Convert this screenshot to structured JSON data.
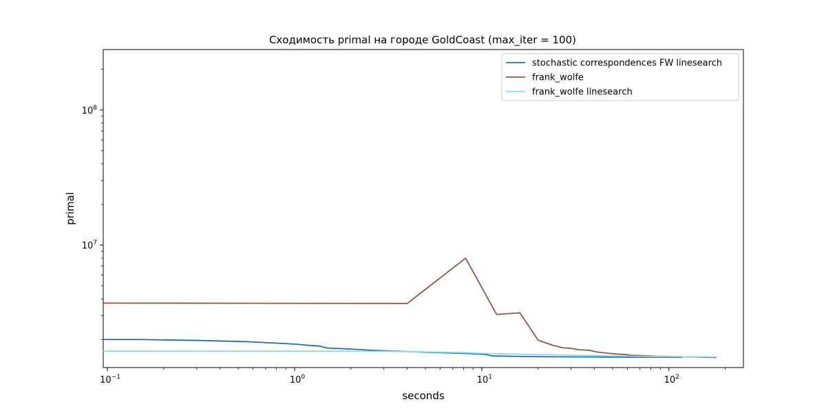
{
  "chart_data": {
    "type": "line",
    "title": "Сходимость primal на городе GoldCoast  (max_iter = 100)",
    "xlabel": "seconds",
    "ylabel": "primal",
    "xscale": "log",
    "yscale": "log",
    "xlim": [
      0.095,
      250
    ],
    "ylim": [
      1240000,
      280000000
    ],
    "grid": false,
    "legend_position": "top-right",
    "x_ticks": [
      {
        "value": 0.1,
        "base": "10",
        "exp": "−1"
      },
      {
        "value": 1,
        "base": "10",
        "exp": "0"
      },
      {
        "value": 10,
        "base": "10",
        "exp": "1"
      },
      {
        "value": 100,
        "base": "10",
        "exp": "2"
      }
    ],
    "y_ticks": [
      {
        "value": 10000000,
        "base": "10",
        "exp": "7"
      },
      {
        "value": 100000000,
        "base": "10",
        "exp": "8"
      }
    ],
    "series": [
      {
        "name": "stochastic correspondences FW linesearch",
        "color": "#1f6fb0",
        "x": [
          0.095,
          0.15,
          0.3,
          0.55,
          0.8,
          1.0,
          1.2,
          1.35,
          1.5,
          2.0,
          2.5,
          3.5,
          5.0,
          7.0,
          9.0,
          10.5,
          11.5,
          16.0,
          25.0,
          40.0,
          60.0,
          80.0,
          100.0,
          118.0
        ],
        "y": [
          2000000,
          2000000,
          1970000,
          1930000,
          1880000,
          1850000,
          1810000,
          1790000,
          1730000,
          1700000,
          1670000,
          1640000,
          1610000,
          1590000,
          1570000,
          1550000,
          1510000,
          1500000,
          1490000,
          1485000,
          1480000,
          1478000,
          1476000,
          1475000
        ]
      },
      {
        "name": "frank_wolfe",
        "color": "#8c564b",
        "x": [
          0.095,
          4.0,
          8.2,
          12.0,
          16.0,
          20.0,
          24.0,
          27.0,
          30.0,
          33.0,
          36.0,
          38.0,
          41.0,
          44.0,
          48.0,
          53.0,
          58.0,
          63.0,
          68.0,
          75.0,
          85.0,
          100.0,
          120.0,
          150.0,
          180.0
        ],
        "y": [
          3720000,
          3700000,
          8000000,
          3070000,
          3150000,
          1980000,
          1810000,
          1740000,
          1720000,
          1680000,
          1670000,
          1660000,
          1620000,
          1600000,
          1580000,
          1560000,
          1550000,
          1530000,
          1525000,
          1515000,
          1505000,
          1500000,
          1490000,
          1480000,
          1470000
        ]
      },
      {
        "name": "frank_wolfe linesearch",
        "color": "#8fdae9",
        "x": [
          0.095,
          1.0,
          3.0,
          5.0,
          8.0,
          10.0,
          15.0,
          25.0,
          40.0,
          60.0,
          100.0,
          140.0,
          180.0
        ],
        "y": [
          1640000,
          1640000,
          1635000,
          1620000,
          1600000,
          1580000,
          1560000,
          1540000,
          1520000,
          1505000,
          1495000,
          1490000,
          1485000
        ]
      }
    ]
  }
}
